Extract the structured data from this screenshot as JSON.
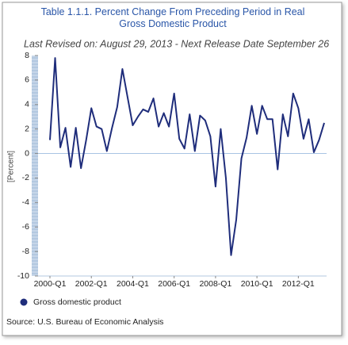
{
  "chart_data": {
    "type": "line",
    "title": "Table 1.1.1. Percent Change From Preceding Period in Real Gross Domestic Product",
    "subtitle": "Last Revised on: August 29, 2013 - Next Release Date September 26",
    "y_label": "[Percent]",
    "source": "Source: U.S. Bureau of Economic Analysis",
    "categories": [
      "2000-Q1",
      null,
      null,
      null,
      null,
      null,
      null,
      null,
      "2002-Q1",
      null,
      null,
      null,
      null,
      null,
      null,
      null,
      "2004-Q1",
      null,
      null,
      null,
      null,
      null,
      null,
      null,
      "2006-Q1",
      null,
      null,
      null,
      null,
      null,
      null,
      null,
      "2008-Q1",
      null,
      null,
      null,
      null,
      null,
      null,
      null,
      "2010-Q1",
      null,
      null,
      null,
      null,
      null,
      null,
      null,
      "2012-Q1",
      null,
      null,
      null,
      null,
      null
    ],
    "series": [
      {
        "name": "Gross domestic product",
        "color": "#1f2d7b",
        "values": [
          1.1,
          7.8,
          0.5,
          2.1,
          -1.1,
          2.1,
          -1.2,
          1.1,
          3.7,
          2.2,
          2.0,
          0.2,
          2.1,
          3.8,
          6.9,
          4.6,
          2.3,
          3.0,
          3.6,
          3.4,
          4.5,
          2.2,
          3.3,
          2.2,
          4.9,
          1.2,
          0.4,
          3.2,
          0.2,
          3.1,
          2.7,
          1.4,
          -2.7,
          2.0,
          -2.0,
          -8.3,
          -5.4,
          -0.4,
          1.3,
          3.9,
          1.6,
          3.9,
          2.8,
          2.8,
          -1.3,
          3.2,
          1.4,
          4.9,
          3.7,
          1.2,
          2.8,
          0.1,
          1.1,
          2.5
        ]
      }
    ],
    "ylim": [
      -10,
      8
    ],
    "yticks": [
      -10,
      -8,
      -6,
      -4,
      -2,
      0,
      2,
      4,
      6,
      8
    ]
  }
}
